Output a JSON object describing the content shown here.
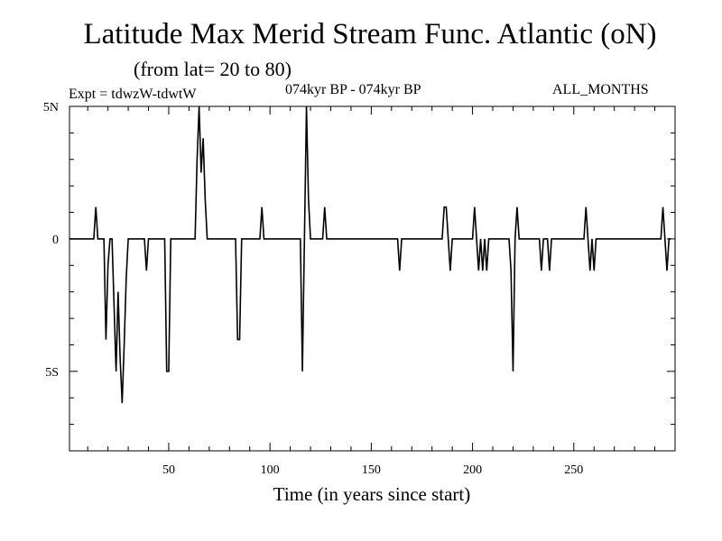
{
  "header": {
    "title": "Latitude Max Merid Stream Func. Atlantic (oN)",
    "subtitle": "(from lat= 20 to 80)",
    "expt": "Expt = tdwzW-tdwtW",
    "period": "074kyr BP - 074kyr BP",
    "months": "ALL_MONTHS"
  },
  "chart_data": {
    "type": "line",
    "title": "Latitude Max Merid Stream Func. Atlantic (oN)",
    "subtitle": "(from lat= 20 to 80)",
    "xlabel": "Time (in years since start)",
    "ylabel": "",
    "xlim": [
      1,
      300
    ],
    "ylim": [
      -8,
      5
    ],
    "x_ticks": [
      50,
      100,
      150,
      200,
      250
    ],
    "y_ticks": [
      {
        "value": 5,
        "label": "5N"
      },
      {
        "value": 0,
        "label": "0"
      },
      {
        "value": -5,
        "label": "5S"
      }
    ],
    "grid": false,
    "series": [
      {
        "points": [
          [
            1,
            0
          ],
          [
            13,
            0
          ],
          [
            14,
            1.2
          ],
          [
            15,
            0
          ],
          [
            18,
            0
          ],
          [
            19,
            -3.8
          ],
          [
            20,
            -1
          ],
          [
            21,
            0
          ],
          [
            22,
            0
          ],
          [
            23,
            -2.5
          ],
          [
            24,
            -5
          ],
          [
            25,
            -2
          ],
          [
            26,
            -4.5
          ],
          [
            27,
            -6.2
          ],
          [
            28,
            -4
          ],
          [
            29,
            -1.5
          ],
          [
            30,
            0
          ],
          [
            38,
            0
          ],
          [
            39,
            -1.2
          ],
          [
            40,
            0
          ],
          [
            48,
            0
          ],
          [
            49,
            -5
          ],
          [
            50,
            -5
          ],
          [
            51,
            0
          ],
          [
            63,
            0
          ],
          [
            64,
            3
          ],
          [
            65,
            5
          ],
          [
            66,
            2.5
          ],
          [
            67,
            3.8
          ],
          [
            68,
            1.5
          ],
          [
            69,
            0
          ],
          [
            83,
            0
          ],
          [
            84,
            -3.8
          ],
          [
            85,
            -3.8
          ],
          [
            86,
            0
          ],
          [
            95,
            0
          ],
          [
            96,
            1.2
          ],
          [
            97,
            0
          ],
          [
            115,
            0
          ],
          [
            116,
            -5
          ],
          [
            117,
            0
          ],
          [
            118,
            5
          ],
          [
            119,
            1.5
          ],
          [
            120,
            0
          ],
          [
            126,
            0
          ],
          [
            127,
            1.2
          ],
          [
            128,
            0
          ],
          [
            163,
            0
          ],
          [
            164,
            -1.2
          ],
          [
            165,
            0
          ],
          [
            185,
            0
          ],
          [
            186,
            1.2
          ],
          [
            187,
            1.2
          ],
          [
            188,
            0
          ],
          [
            189,
            -1.2
          ],
          [
            190,
            0
          ],
          [
            200,
            0
          ],
          [
            201,
            1.2
          ],
          [
            202,
            0
          ],
          [
            203,
            -1.2
          ],
          [
            204,
            0
          ],
          [
            205,
            -1.2
          ],
          [
            206,
            0
          ],
          [
            207,
            -1.2
          ],
          [
            208,
            0
          ],
          [
            218,
            0
          ],
          [
            219,
            -1.2
          ],
          [
            220,
            -5
          ],
          [
            221,
            0
          ],
          [
            222,
            1.2
          ],
          [
            223,
            0
          ],
          [
            233,
            0
          ],
          [
            234,
            -1.2
          ],
          [
            235,
            0
          ],
          [
            237,
            0
          ],
          [
            238,
            -1.2
          ],
          [
            239,
            0
          ],
          [
            255,
            0
          ],
          [
            256,
            1.2
          ],
          [
            257,
            0
          ],
          [
            258,
            -1.2
          ],
          [
            259,
            0
          ],
          [
            260,
            -1.2
          ],
          [
            261,
            0
          ],
          [
            293,
            0
          ],
          [
            294,
            1.2
          ],
          [
            295,
            0
          ],
          [
            296,
            -1.2
          ],
          [
            297,
            0
          ],
          [
            298,
            0
          ]
        ]
      }
    ]
  }
}
